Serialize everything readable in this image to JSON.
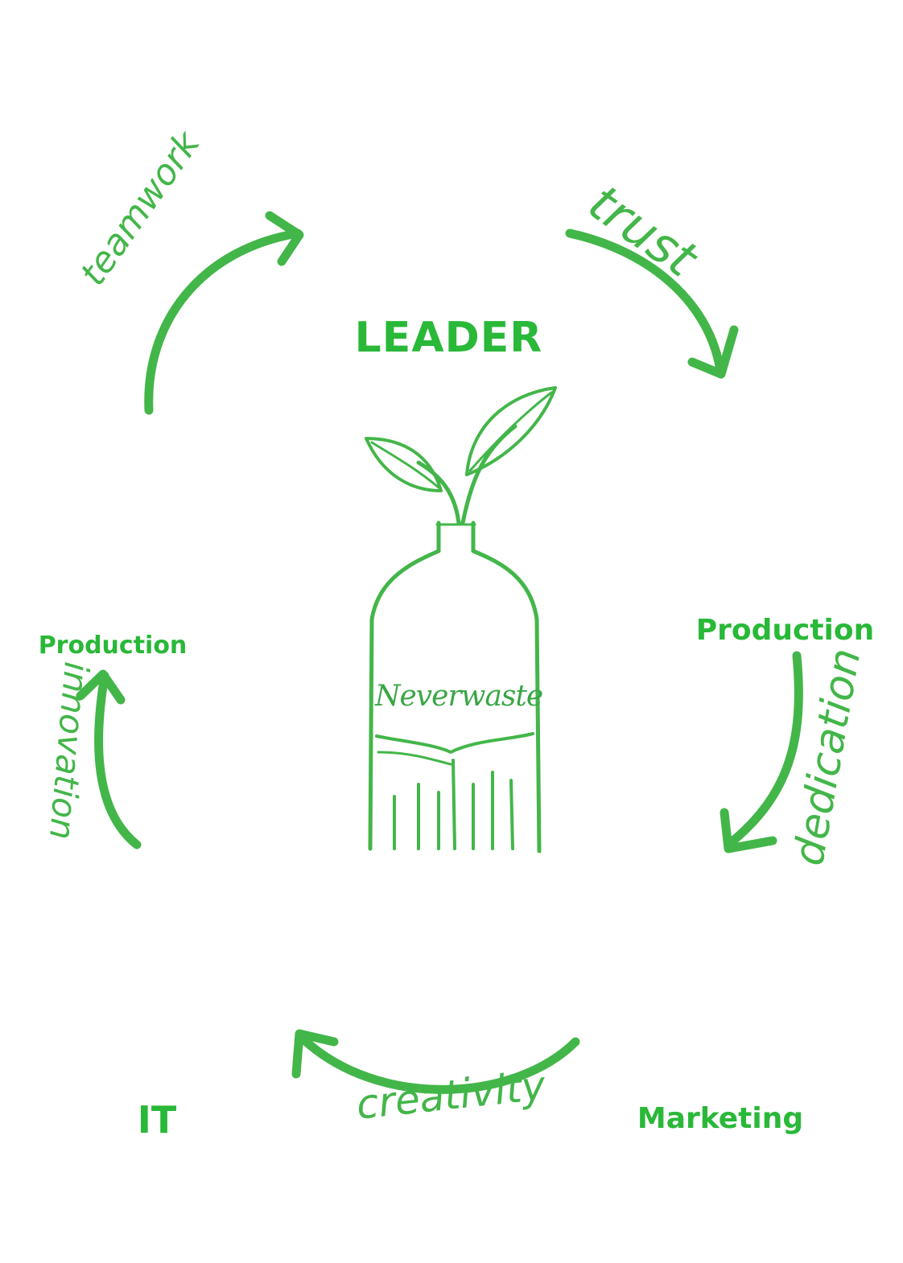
{
  "brand": {
    "name": "Neverwaste",
    "accent": "#39b54a",
    "text_green": "#29b838"
  },
  "team": [
    {
      "id": "leader",
      "role": "LEADER",
      "sweater": "#efd7cc",
      "hair": "#2a1c16",
      "bg": "#cfc5b8"
    },
    {
      "id": "right-top",
      "role": "Production",
      "sweater": "#f6f6f6",
      "hair": "#3a2a20",
      "bg": "#d8cfc4"
    },
    {
      "id": "right-bottom",
      "role": "Marketing",
      "sweater": "#f4f4f4",
      "hair": "#2e211b",
      "bg": "#dcd2c8"
    },
    {
      "id": "left-bottom",
      "role": "IT",
      "sweater": "#28385e",
      "hair": "#1f1712",
      "bg": "#b9b3ab"
    },
    {
      "id": "left-top",
      "role": "Production",
      "sweater": "#5a1a20",
      "hair": "#2a1c15",
      "bg": "#d2c8bb"
    }
  ],
  "values": [
    {
      "id": "teamwork",
      "label": "teamwork"
    },
    {
      "id": "trust",
      "label": "trust"
    },
    {
      "id": "dedication",
      "label": "dedication"
    },
    {
      "id": "creativity",
      "label": "creativity"
    },
    {
      "id": "innovation",
      "label": "innovation"
    }
  ]
}
